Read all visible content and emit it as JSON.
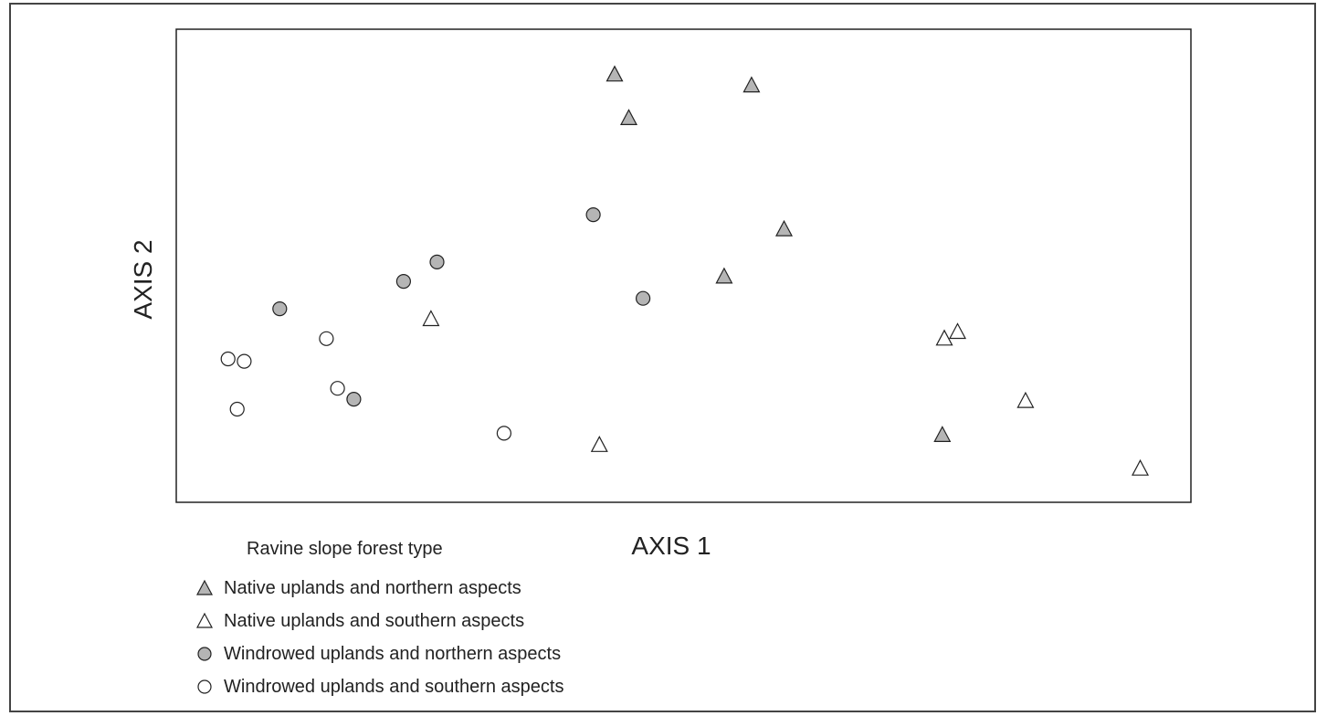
{
  "chart_data": {
    "type": "scatter",
    "title": "",
    "xlabel": "AXIS 1",
    "ylabel": "AXIS 2",
    "xlim": [
      0,
      100
    ],
    "ylim": [
      0,
      100
    ],
    "grid": false,
    "legend": {
      "title": "Ravine slope forest type",
      "placement": "bottom-left"
    },
    "series": [
      {
        "name": "Native uplands and northern aspects",
        "marker": "triangle",
        "fill": "#b5b5b5",
        "points": [
          {
            "x": 43.2,
            "y": 90.4
          },
          {
            "x": 44.6,
            "y": 81.2
          },
          {
            "x": 56.7,
            "y": 88.1
          },
          {
            "x": 59.9,
            "y": 57.7
          },
          {
            "x": 54.0,
            "y": 47.7
          },
          {
            "x": 75.5,
            "y": 14.2
          }
        ]
      },
      {
        "name": "Native uplands and southern aspects",
        "marker": "triangle",
        "fill": "#ffffff",
        "points": [
          {
            "x": 25.1,
            "y": 38.7
          },
          {
            "x": 41.7,
            "y": 12.1
          },
          {
            "x": 75.7,
            "y": 34.6
          },
          {
            "x": 77.0,
            "y": 36.0
          },
          {
            "x": 83.7,
            "y": 21.4
          },
          {
            "x": 95.0,
            "y": 7.1
          }
        ]
      },
      {
        "name": "Windrowed uplands and northern aspects",
        "marker": "circle",
        "fill": "#b5b5b5",
        "points": [
          {
            "x": 10.2,
            "y": 40.9
          },
          {
            "x": 22.4,
            "y": 46.7
          },
          {
            "x": 25.7,
            "y": 50.8
          },
          {
            "x": 41.1,
            "y": 60.8
          },
          {
            "x": 46.0,
            "y": 43.1
          },
          {
            "x": 17.5,
            "y": 21.8
          }
        ]
      },
      {
        "name": "Windrowed uplands and southern aspects",
        "marker": "circle",
        "fill": "#ffffff",
        "points": [
          {
            "x": 5.1,
            "y": 30.3
          },
          {
            "x": 6.7,
            "y": 29.8
          },
          {
            "x": 6.0,
            "y": 19.7
          },
          {
            "x": 14.8,
            "y": 34.6
          },
          {
            "x": 15.9,
            "y": 24.1
          },
          {
            "x": 32.3,
            "y": 14.6
          }
        ]
      }
    ]
  }
}
